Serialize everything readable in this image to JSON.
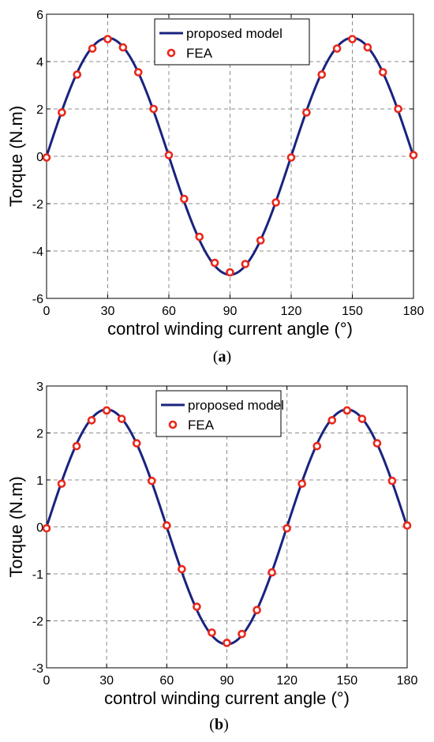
{
  "chart_data": [
    {
      "type": "line",
      "caption_open": "(",
      "caption_letter": "a",
      "caption_close": ")",
      "xlabel": "control winding current angle (°)",
      "ylabel": "Torque (N.m)",
      "xlim": [
        0,
        180
      ],
      "ylim": [
        -6,
        6
      ],
      "xticks": [
        "0",
        "30",
        "60",
        "90",
        "120",
        "150",
        "180"
      ],
      "yticks": [
        "-6",
        "-4",
        "-2",
        "0",
        "2",
        "4",
        "6"
      ],
      "grid": true,
      "legend_position": "top-center",
      "series": [
        {
          "name": "proposed model",
          "style": "line",
          "color": "#1a237e",
          "amplitude": 5.0,
          "period": 120
        },
        {
          "name": "FEA",
          "style": "marker",
          "color": "#e8281b",
          "x": [
            0,
            7.5,
            15,
            22.5,
            30,
            37.5,
            45,
            52.5,
            60,
            67.5,
            75,
            82.5,
            90,
            97.5,
            105,
            112.5,
            120,
            127.5,
            135,
            142.5,
            150,
            157.5,
            165,
            172.5,
            180
          ],
          "y": [
            -0.05,
            1.85,
            3.45,
            4.55,
            4.95,
            4.6,
            3.55,
            2.0,
            0.05,
            -1.8,
            -3.4,
            -4.5,
            -4.9,
            -4.55,
            -3.55,
            -1.95,
            -0.05,
            1.85,
            3.45,
            4.55,
            4.95,
            4.6,
            3.55,
            2.0,
            0.05
          ]
        }
      ]
    },
    {
      "type": "line",
      "caption_open": "(",
      "caption_letter": "b",
      "caption_close": ")",
      "xlabel": "control winding current angle (°)",
      "ylabel": "Torque (N.m)",
      "xlim": [
        0,
        180
      ],
      "ylim": [
        -3,
        3
      ],
      "xticks": [
        "0",
        "30",
        "60",
        "90",
        "120",
        "150",
        "180"
      ],
      "yticks": [
        "-3",
        "-2",
        "-1",
        "0",
        "1",
        "2",
        "3"
      ],
      "grid": true,
      "legend_position": "top-center",
      "series": [
        {
          "name": "proposed model",
          "style": "line",
          "color": "#1a237e",
          "amplitude": 2.5,
          "period": 120
        },
        {
          "name": "FEA",
          "style": "marker",
          "color": "#e8281b",
          "x": [
            0,
            7.5,
            15,
            22.5,
            30,
            37.5,
            45,
            52.5,
            60,
            67.5,
            75,
            82.5,
            90,
            97.5,
            105,
            112.5,
            120,
            127.5,
            135,
            142.5,
            150,
            157.5,
            165,
            172.5,
            180
          ],
          "y": [
            -0.03,
            0.92,
            1.72,
            2.27,
            2.48,
            2.3,
            1.78,
            0.98,
            0.03,
            -0.9,
            -1.7,
            -2.25,
            -2.47,
            -2.28,
            -1.77,
            -0.97,
            -0.03,
            0.92,
            1.72,
            2.27,
            2.48,
            2.3,
            1.78,
            0.98,
            0.03
          ]
        }
      ]
    }
  ]
}
